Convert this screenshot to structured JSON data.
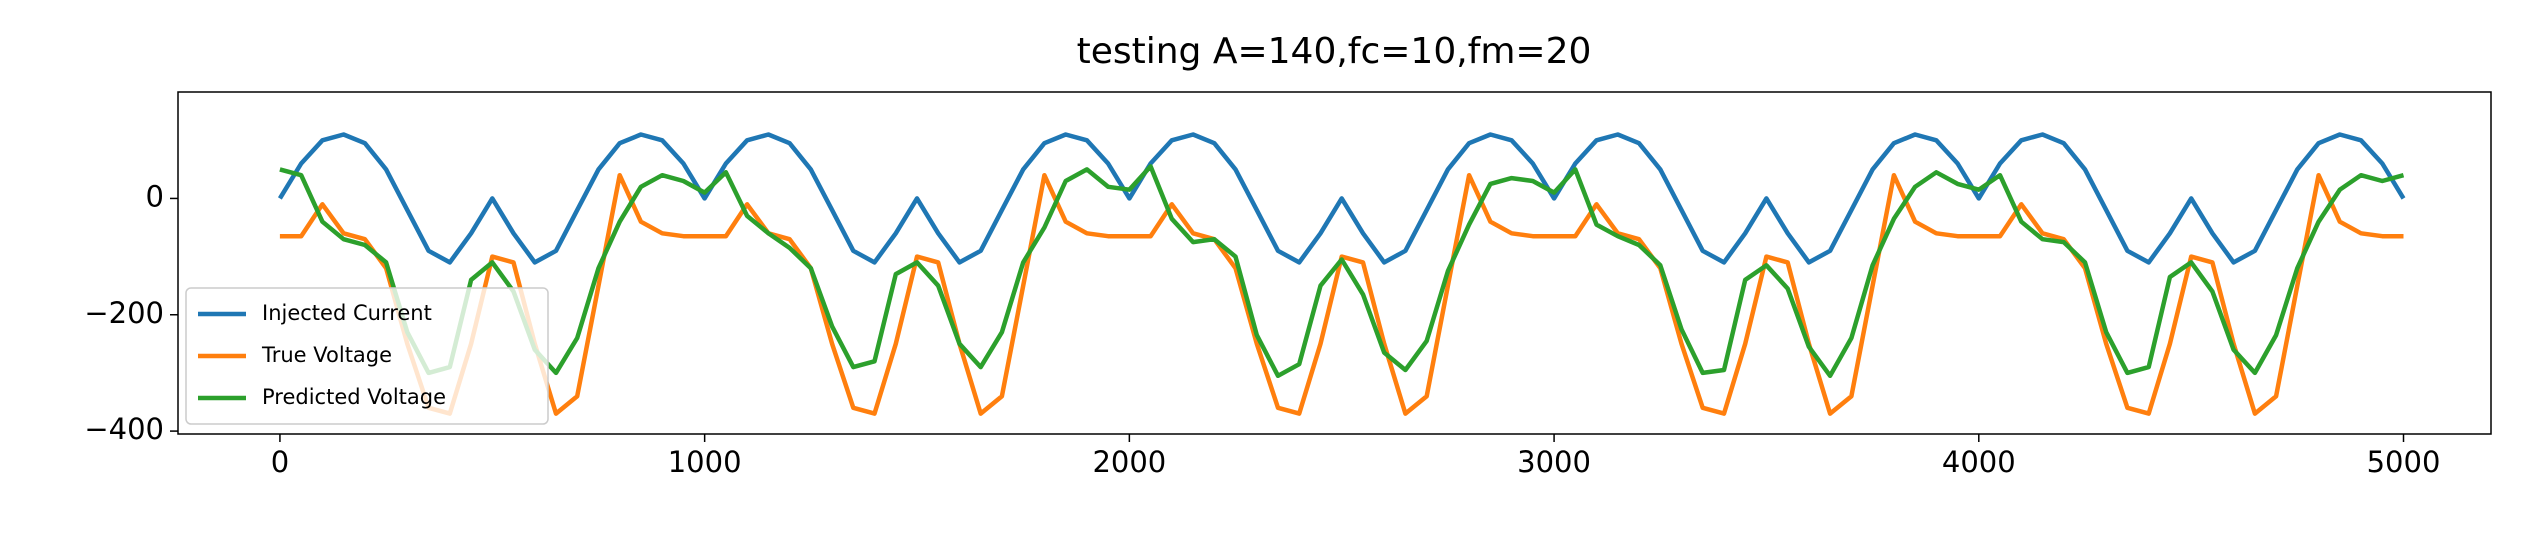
{
  "chart_data": {
    "type": "line",
    "title": "testing A=140,fc=10,fm=20",
    "x": [
      0,
      50,
      100,
      150,
      200,
      250,
      300,
      350,
      400,
      450,
      500,
      550,
      600,
      650,
      700,
      750,
      800,
      850,
      900,
      950,
      1000,
      1050,
      1100,
      1150,
      1200,
      1250,
      1300,
      1350,
      1400,
      1450,
      1500,
      1550,
      1600,
      1650,
      1700,
      1750,
      1800,
      1850,
      1900,
      1950,
      2000,
      2050,
      2100,
      2150,
      2200,
      2250,
      2300,
      2350,
      2400,
      2450,
      2500,
      2550,
      2600,
      2650,
      2700,
      2750,
      2800,
      2850,
      2900,
      2950,
      3000,
      3050,
      3100,
      3150,
      3200,
      3250,
      3300,
      3350,
      3400,
      3450,
      3500,
      3550,
      3600,
      3650,
      3700,
      3750,
      3800,
      3850,
      3900,
      3950,
      4000,
      4050,
      4100,
      4150,
      4200,
      4250,
      4300,
      4350,
      4400,
      4450,
      4500,
      4550,
      4600,
      4650,
      4700,
      4750,
      4800,
      4850,
      4900,
      4950,
      5000
    ],
    "series": [
      {
        "name": "Injected Current",
        "color": "#1f77b4",
        "values": [
          0,
          60,
          100,
          110,
          95,
          50,
          -20,
          -90,
          -110,
          -60,
          0,
          -60,
          -110,
          -90,
          -20,
          50,
          95,
          110,
          100,
          60,
          0,
          60,
          100,
          110,
          95,
          50,
          -20,
          -90,
          -110,
          -60,
          0,
          -60,
          -110,
          -90,
          -20,
          50,
          95,
          110,
          100,
          60,
          0,
          60,
          100,
          110,
          95,
          50,
          -20,
          -90,
          -110,
          -60,
          0,
          -60,
          -110,
          -90,
          -20,
          50,
          95,
          110,
          100,
          60,
          0,
          60,
          100,
          110,
          95,
          50,
          -20,
          -90,
          -110,
          -60,
          0,
          -60,
          -110,
          -90,
          -20,
          50,
          95,
          110,
          100,
          60,
          0,
          60,
          100,
          110,
          95,
          50,
          -20,
          -90,
          -110,
          -60,
          0,
          -60,
          -110,
          -90,
          -20,
          50,
          95,
          110,
          100,
          60,
          0
        ]
      },
      {
        "name": "True Voltage",
        "color": "#ff7f0e",
        "values": [
          -65,
          -65,
          -10,
          -60,
          -70,
          -120,
          -250,
          -360,
          -370,
          -250,
          -100,
          -110,
          -250,
          -370,
          -340,
          -150,
          40,
          -40,
          -60,
          -65,
          -65,
          -65,
          -10,
          -60,
          -70,
          -120,
          -250,
          -360,
          -370,
          -250,
          -100,
          -110,
          -250,
          -370,
          -340,
          -150,
          40,
          -40,
          -60,
          -65,
          -65,
          -65,
          -10,
          -60,
          -70,
          -120,
          -250,
          -360,
          -370,
          -250,
          -100,
          -110,
          -250,
          -370,
          -340,
          -150,
          40,
          -40,
          -60,
          -65,
          -65,
          -65,
          -10,
          -60,
          -70,
          -120,
          -250,
          -360,
          -370,
          -250,
          -100,
          -110,
          -250,
          -370,
          -340,
          -150,
          40,
          -40,
          -60,
          -65,
          -65,
          -65,
          -10,
          -60,
          -70,
          -120,
          -250,
          -360,
          -370,
          -250,
          -100,
          -110,
          -250,
          -370,
          -340,
          -150,
          40,
          -40,
          -60,
          -65,
          -65
        ]
      },
      {
        "name": "Predicted Voltage",
        "color": "#2ca02c",
        "values": [
          50,
          40,
          -40,
          -70,
          -80,
          -110,
          -230,
          -300,
          -290,
          -140,
          -110,
          -160,
          -260,
          -300,
          -240,
          -120,
          -40,
          20,
          40,
          30,
          10,
          45,
          -30,
          -60,
          -85,
          -120,
          -220,
          -290,
          -280,
          -130,
          -110,
          -150,
          -250,
          -290,
          -230,
          -110,
          -50,
          30,
          50,
          20,
          15,
          55,
          -35,
          -75,
          -70,
          -100,
          -235,
          -305,
          -285,
          -150,
          -105,
          -165,
          -265,
          -295,
          -245,
          -125,
          -45,
          25,
          35,
          30,
          10,
          50,
          -45,
          -65,
          -80,
          -115,
          -225,
          -300,
          -295,
          -140,
          -115,
          -155,
          -255,
          -305,
          -240,
          -115,
          -35,
          20,
          45,
          25,
          15,
          40,
          -40,
          -70,
          -75,
          -110,
          -230,
          -300,
          -290,
          -135,
          -110,
          -160,
          -260,
          -300,
          -235,
          -120,
          -40,
          15,
          40,
          30,
          40
        ]
      }
    ],
    "xlim": [
      -240,
      5206
    ],
    "ylim": [
      -405,
      183
    ],
    "xticks": [
      0,
      1000,
      2000,
      3000,
      4000,
      5000
    ],
    "yticks": [
      {
        "value": -400,
        "label": "−400"
      },
      {
        "value": -200,
        "label": "−200"
      },
      0
    ],
    "legend": "lower left"
  }
}
